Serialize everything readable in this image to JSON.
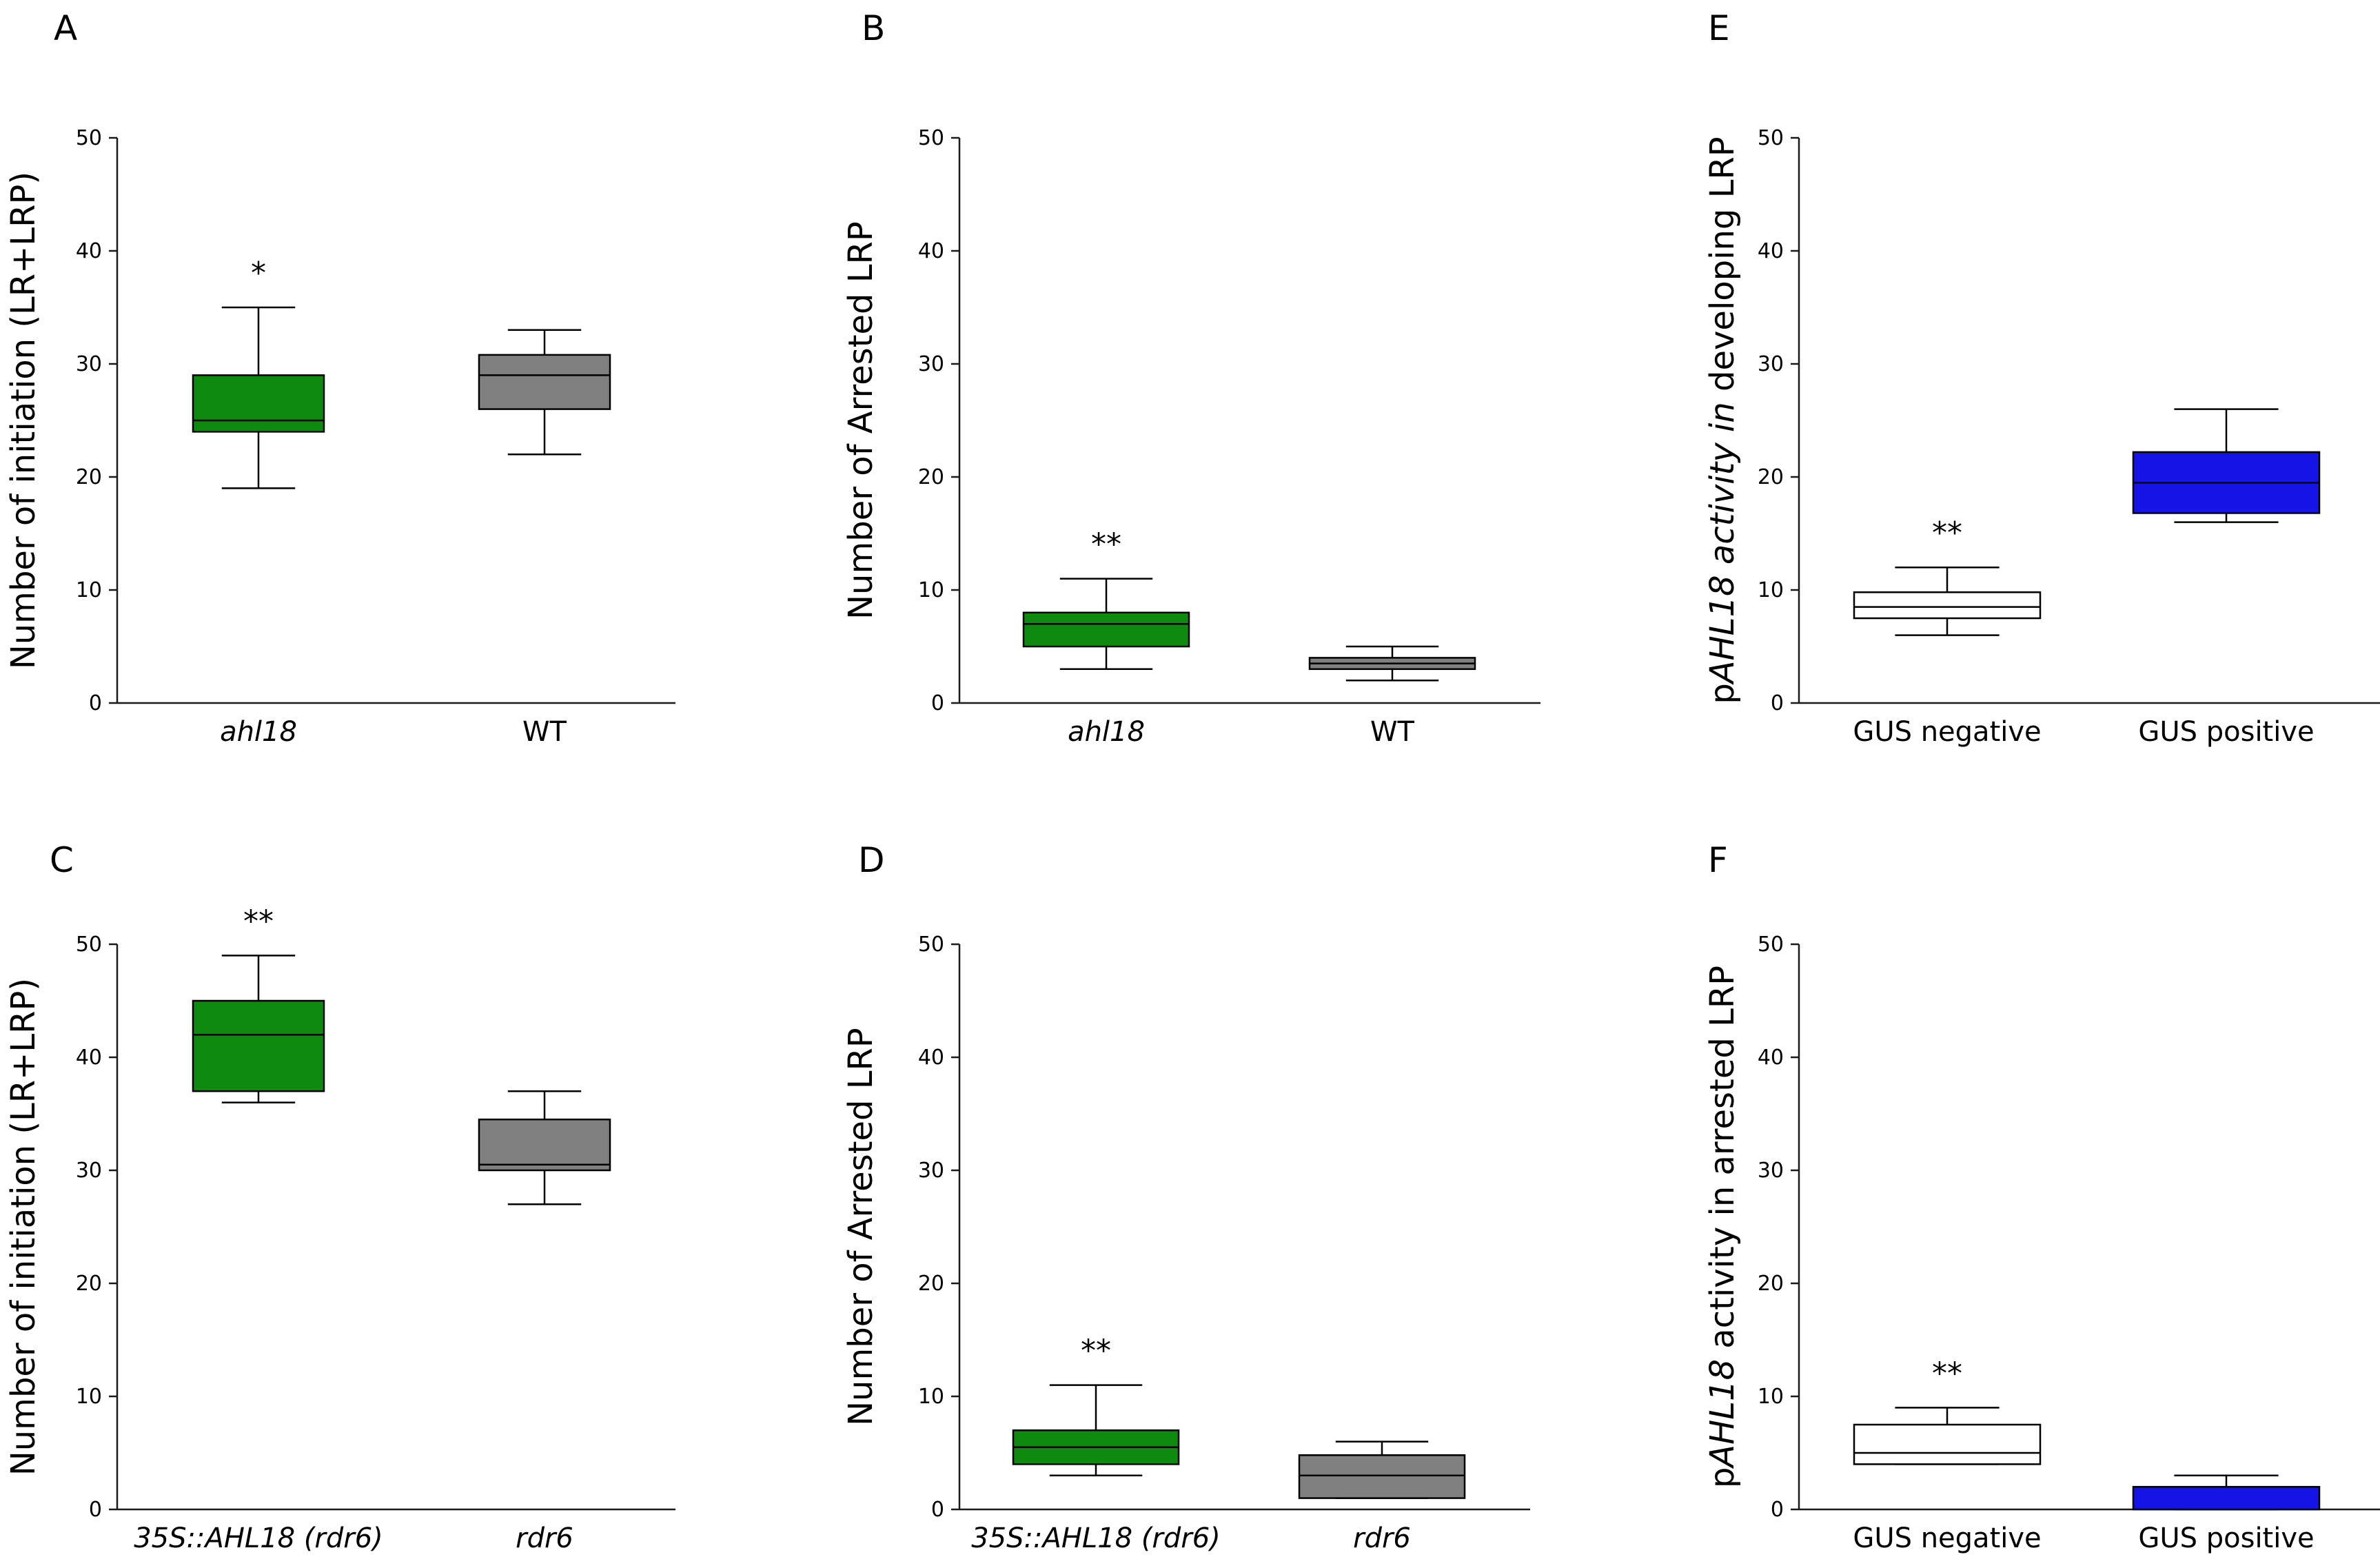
{
  "chart_data": [
    {
      "panel": "A",
      "type": "box",
      "ylabel": "Number of initiation (LR+LRP)",
      "ylim": [
        0,
        50
      ],
      "yticks": [
        0,
        10,
        20,
        30,
        40,
        50
      ],
      "categories": [
        {
          "label": "ahl18",
          "italic": true,
          "color": "#0e8a0e",
          "min": 19,
          "q1": 24,
          "median": 25,
          "q3": 29,
          "max": 35,
          "significance": "*"
        },
        {
          "label": "WT",
          "italic": false,
          "color": "#808080",
          "min": 22,
          "q1": 26,
          "median": 29,
          "q3": 30.8,
          "max": 33,
          "significance": ""
        }
      ]
    },
    {
      "panel": "B",
      "type": "box",
      "ylabel": "Number of Arrested LRP",
      "ylim": [
        0,
        50
      ],
      "yticks": [
        0,
        10,
        20,
        30,
        40,
        50
      ],
      "categories": [
        {
          "label": "ahl18",
          "italic": true,
          "color": "#0e8a0e",
          "min": 3,
          "q1": 5,
          "median": 7,
          "q3": 8,
          "max": 11,
          "significance": "**"
        },
        {
          "label": "WT",
          "italic": false,
          "color": "#808080",
          "min": 2,
          "q1": 3,
          "median": 3.5,
          "q3": 4,
          "max": 5,
          "significance": ""
        }
      ]
    },
    {
      "panel": "E",
      "type": "box",
      "ylabel_parts": [
        {
          "text": "p",
          "italic": false
        },
        {
          "text": "AHL18 activity in",
          "italic": true
        },
        {
          "text": " developing LRP",
          "italic": false
        }
      ],
      "ylim": [
        0,
        50
      ],
      "yticks": [
        0,
        10,
        20,
        30,
        40,
        50
      ],
      "categories": [
        {
          "label": "GUS negative",
          "italic": false,
          "color": "#ffffff",
          "min": 6,
          "q1": 7.5,
          "median": 8.5,
          "q3": 9.8,
          "max": 12,
          "significance": "**"
        },
        {
          "label": "GUS positive",
          "italic": false,
          "color": "#1414e6",
          "min": 16,
          "q1": 16.8,
          "median": 19.5,
          "q3": 22.2,
          "max": 26,
          "significance": ""
        }
      ]
    },
    {
      "panel": "C",
      "type": "box",
      "ylabel": "Number of initiation (LR+LRP)",
      "ylim": [
        0,
        50
      ],
      "yticks": [
        0,
        10,
        20,
        30,
        40,
        50
      ],
      "categories": [
        {
          "label": "35S::AHL18 (rdr6)",
          "italic": true,
          "color": "#0e8a0e",
          "min": 36,
          "q1": 37,
          "median": 42,
          "q3": 45,
          "max": 49,
          "significance": "**"
        },
        {
          "label": "rdr6",
          "italic": true,
          "color": "#808080",
          "min": 27,
          "q1": 30,
          "median": 30.5,
          "q3": 34.5,
          "max": 37,
          "significance": ""
        }
      ]
    },
    {
      "panel": "D",
      "type": "box",
      "ylabel": "Number of Arrested LRP",
      "ylim": [
        0,
        50
      ],
      "yticks": [
        0,
        10,
        20,
        30,
        40,
        50
      ],
      "categories": [
        {
          "label": "35S::AHL18 (rdr6)",
          "italic": true,
          "color": "#0e8a0e",
          "min": 3,
          "q1": 4,
          "median": 5.5,
          "q3": 7,
          "max": 11,
          "significance": "**"
        },
        {
          "label": "rdr6",
          "italic": true,
          "color": "#808080",
          "min": 1,
          "q1": 1,
          "median": 3,
          "q3": 4.8,
          "max": 6,
          "significance": ""
        }
      ]
    },
    {
      "panel": "F",
      "type": "box",
      "ylabel_parts": [
        {
          "text": "p",
          "italic": false
        },
        {
          "text": "AHL18",
          "italic": true
        },
        {
          "text": " activity in arrested LRP",
          "italic": false
        }
      ],
      "ylim": [
        0,
        50
      ],
      "yticks": [
        0,
        10,
        20,
        30,
        40,
        50
      ],
      "categories": [
        {
          "label": "GUS negative",
          "italic": false,
          "color": "#ffffff",
          "min": 4,
          "q1": 4,
          "median": 5,
          "q3": 7.5,
          "max": 9,
          "significance": "**"
        },
        {
          "label": "GUS positive",
          "italic": false,
          "color": "#1414e6",
          "min": 0,
          "q1": 0,
          "median": 2,
          "q3": 2,
          "max": 3,
          "significance": ""
        }
      ]
    }
  ]
}
